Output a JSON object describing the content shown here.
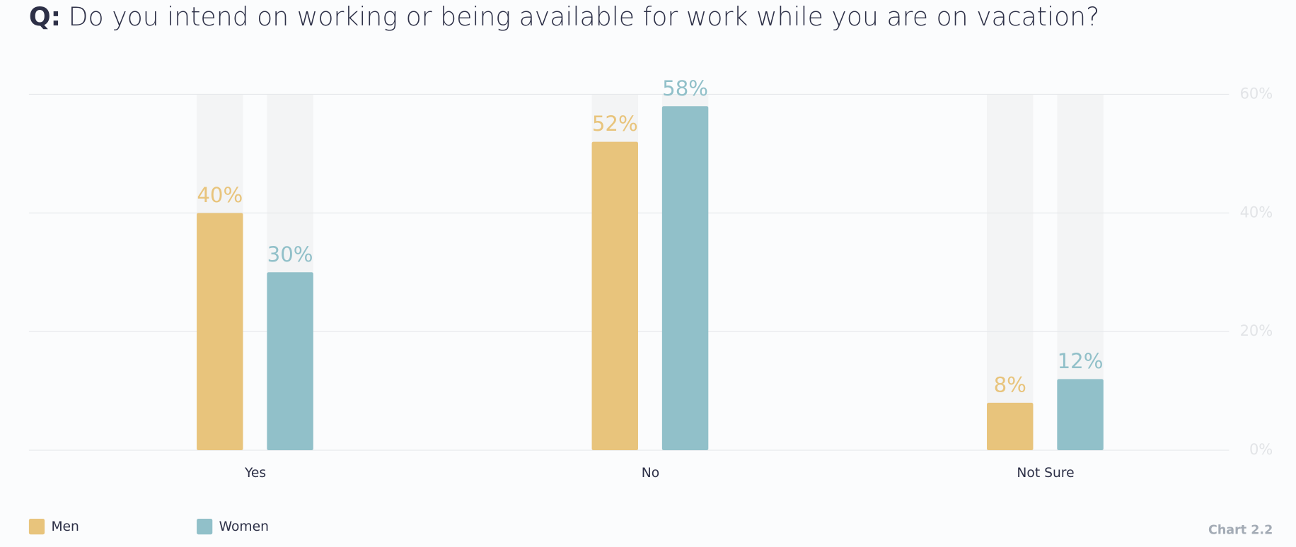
{
  "chart_data": {
    "type": "bar",
    "title_label": "Q:",
    "title": "Do you intend on working or being available for work while you are on vacation?",
    "categories": [
      "Yes",
      "No",
      "Not Sure"
    ],
    "series": [
      {
        "name": "Men",
        "color": "#e8c47c",
        "values": [
          40,
          52,
          8
        ],
        "value_labels": [
          "40%",
          "52%",
          "8%"
        ]
      },
      {
        "name": "Women",
        "color": "#91c0c9",
        "values": [
          30,
          58,
          12
        ],
        "value_labels": [
          "30%",
          "58%",
          "12%"
        ]
      }
    ],
    "ylim": [
      0,
      60
    ],
    "yticks": [
      {
        "value": 0,
        "label": "0%"
      },
      {
        "value": 20,
        "label": "20%"
      },
      {
        "value": 40,
        "label": "40%"
      },
      {
        "value": 60,
        "label": "60%"
      }
    ],
    "grid": true,
    "legend": "bottom-left",
    "chart_label": "Chart 2.2"
  }
}
